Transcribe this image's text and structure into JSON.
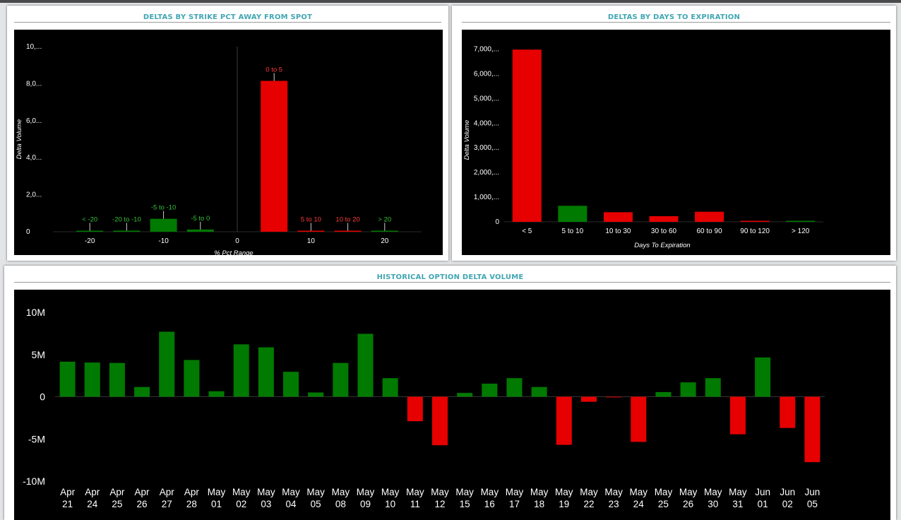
{
  "panels": {
    "strike": {
      "title": "DELTAS BY STRIKE PCT AWAY FROM SPOT"
    },
    "expiry": {
      "title": "DELTAS BY DAYS TO EXPIRATION"
    },
    "history": {
      "title": "HISTORICAL OPTION DELTA VOLUME"
    }
  },
  "colors": {
    "positive": "#007a00",
    "negative": "#e60000",
    "title": "#41a6b3",
    "plot_bg": "#000000"
  },
  "chart_data": [
    {
      "type": "bar",
      "title": "DELTAS BY STRIKE PCT AWAY FROM SPOT",
      "xlabel": "% Pct Range",
      "ylabel": "Delta Volume",
      "xlim": [
        -25,
        25
      ],
      "ylim": [
        0,
        10000000
      ],
      "x_ticks": [
        -20,
        -10,
        0,
        10,
        20
      ],
      "y_tick_labels": [
        "0",
        "2,0...",
        "4,0...",
        "6,0...",
        "8,0...",
        "10,..."
      ],
      "y_tick_values": [
        0,
        2000000,
        4000000,
        6000000,
        8000000,
        10000000
      ],
      "bars": [
        {
          "label": "< -20",
          "x": -20,
          "value": 20000,
          "sign": "positive"
        },
        {
          "label": "-20 to -10",
          "x": -15,
          "value": 60000,
          "sign": "positive"
        },
        {
          "label": "-5 to -10",
          "x": -10,
          "value": 700000,
          "sign": "positive"
        },
        {
          "label": "-5 to 0",
          "x": -5,
          "value": 120000,
          "sign": "positive"
        },
        {
          "label": "0 to 5",
          "x": 5,
          "value": 8150000,
          "sign": "negative"
        },
        {
          "label": "5 to 10",
          "x": 10,
          "value": 50000,
          "sign": "negative"
        },
        {
          "label": "10 to 20",
          "x": 15,
          "value": 30000,
          "sign": "negative"
        },
        {
          "label": "> 20",
          "x": 20,
          "value": 15000,
          "sign": "positive"
        }
      ]
    },
    {
      "type": "bar",
      "title": "DELTAS BY DAYS TO EXPIRATION",
      "xlabel": "Days To Expiration",
      "ylabel": "Delta Volume",
      "ylim": [
        0,
        7500000
      ],
      "y_tick_labels": [
        "0",
        "1,000,...",
        "2,000,...",
        "3,000,...",
        "4,000,...",
        "5,000,...",
        "6,000,...",
        "7,000,..."
      ],
      "y_tick_values": [
        0,
        1000000,
        2000000,
        3000000,
        4000000,
        5000000,
        6000000,
        7000000
      ],
      "categories": [
        "< 5",
        "5 to 10",
        "10 to 30",
        "30 to 60",
        "60 to 90",
        "90 to 120",
        "> 120"
      ],
      "values": [
        6980000,
        650000,
        390000,
        230000,
        410000,
        10000,
        30000
      ],
      "signs": [
        "negative",
        "positive",
        "negative",
        "negative",
        "negative",
        "negative",
        "positive"
      ]
    },
    {
      "type": "bar",
      "title": "HISTORICAL OPTION DELTA VOLUME",
      "ylim": [
        -10000000,
        10000000
      ],
      "y_tick_labels": [
        "-10M",
        "-5M",
        "0",
        "5M",
        "10M"
      ],
      "y_tick_values": [
        -10000000,
        -5000000,
        0,
        5000000,
        10000000
      ],
      "categories": [
        [
          "Apr",
          "21"
        ],
        [
          "Apr",
          "24"
        ],
        [
          "Apr",
          "25"
        ],
        [
          "Apr",
          "26"
        ],
        [
          "Apr",
          "27"
        ],
        [
          "Apr",
          "28"
        ],
        [
          "May",
          "01"
        ],
        [
          "May",
          "02"
        ],
        [
          "May",
          "03"
        ],
        [
          "May",
          "04"
        ],
        [
          "May",
          "05"
        ],
        [
          "May",
          "08"
        ],
        [
          "May",
          "09"
        ],
        [
          "May",
          "10"
        ],
        [
          "May",
          "11"
        ],
        [
          "May",
          "12"
        ],
        [
          "May",
          "15"
        ],
        [
          "May",
          "16"
        ],
        [
          "May",
          "17"
        ],
        [
          "May",
          "18"
        ],
        [
          "May",
          "19"
        ],
        [
          "May",
          "22"
        ],
        [
          "May",
          "23"
        ],
        [
          "May",
          "24"
        ],
        [
          "May",
          "25"
        ],
        [
          "May",
          "26"
        ],
        [
          "May",
          "30"
        ],
        [
          "May",
          "31"
        ],
        [
          "Jun",
          "01"
        ],
        [
          "Jun",
          "02"
        ],
        [
          "Jun",
          "05"
        ]
      ],
      "values": [
        4150000,
        4050000,
        4000000,
        1150000,
        7700000,
        4350000,
        650000,
        6200000,
        5850000,
        2950000,
        500000,
        4000000,
        7450000,
        2200000,
        -2900000,
        -5750000,
        450000,
        1550000,
        2200000,
        1150000,
        -5700000,
        -600000,
        -50000,
        -5350000,
        550000,
        1700000,
        2200000,
        -4450000,
        4650000,
        -3700000,
        -7750000
      ]
    }
  ]
}
